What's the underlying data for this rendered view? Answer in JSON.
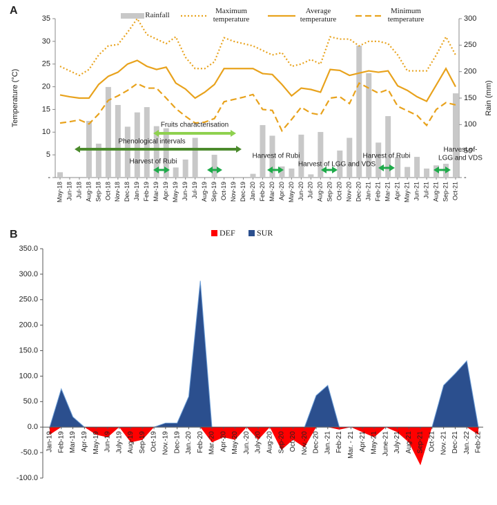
{
  "chart_data": [
    {
      "type": "bar",
      "panel_label": "A",
      "y_label": "Temperature (°C)",
      "y2_label": "Rain (mm)",
      "categories": [
        "May-18",
        "Jun-18",
        "Jul-18",
        "Aug-18",
        "Sep-18",
        "Oct-18",
        "Nov-18",
        "Dec-18",
        "Jan-19",
        "Feb-19",
        "Mar-19",
        "Apr-19",
        "May-19",
        "Jun-19",
        "Jul-19",
        "Aug-19",
        "Sep-19",
        "Oct-19",
        "Nov-19",
        "Dec-19",
        "Jan-20",
        "Feb-20",
        "Mar-20",
        "Apr-20",
        "May-20",
        "Jun-20",
        "Jul-20",
        "Aug-20",
        "Sep-20",
        "Oct-20",
        "Nov-20",
        "Dec-20",
        "Jan-21",
        "Feb-21",
        "Mar-21",
        "Apr-21",
        "May-21",
        "Jun-21",
        "Jul-21",
        "Aug-21",
        "Sep-21",
        "Oct-21"
      ],
      "series": [
        {
          "name": "Rainfall",
          "type": "bar",
          "axis": "y2",
          "color": "#c8c8c8",
          "values": [
            10,
            0,
            0,
            107,
            64,
            171,
            137,
            96,
            123,
            133,
            97,
            93,
            19,
            34,
            75,
            0,
            43,
            0,
            0,
            0,
            7,
            99,
            79,
            21,
            17,
            81,
            6,
            86,
            0,
            51,
            75,
            249,
            197,
            66,
            116,
            39,
            20,
            39,
            17,
            23,
            26,
            159
          ]
        },
        {
          "name": "Maximum temperature",
          "type": "line",
          "style": "dotted",
          "color": "#e8a21c",
          "values": [
            24.5,
            23.5,
            22.5,
            23.8,
            27,
            29,
            29.3,
            32,
            35,
            31.5,
            30.5,
            29.5,
            31,
            26.5,
            24,
            24,
            25.5,
            30.8,
            30,
            29.5,
            29,
            28,
            27,
            27.5,
            24.5,
            25,
            26,
            25,
            31,
            30.5,
            30.5,
            29,
            30,
            30,
            29.5,
            27,
            23.5,
            23.5,
            23.5,
            27,
            31,
            27
          ]
        },
        {
          "name": "Average temperature",
          "type": "line",
          "style": "solid",
          "color": "#e8a21c",
          "values": [
            18.2,
            17.8,
            17.5,
            17.5,
            20.5,
            22.3,
            23.2,
            25,
            25.8,
            24.5,
            23.8,
            24.3,
            20.8,
            19.5,
            17.5,
            18.8,
            20.5,
            24,
            24,
            24,
            24,
            22.9,
            22.7,
            20.5,
            18,
            19.7,
            19.4,
            18.8,
            23.8,
            23.6,
            22.5,
            23,
            23.5,
            23.2,
            23.5,
            20.2,
            19.2,
            17.8,
            16.8,
            20.4,
            24,
            20
          ]
        },
        {
          "name": "Minimum temperature",
          "type": "line",
          "style": "dashed",
          "color": "#e8a21c",
          "values": [
            12,
            12.3,
            12.7,
            11.8,
            14,
            17,
            18,
            19.2,
            20.7,
            19.7,
            19.7,
            17.5,
            15.2,
            13.5,
            12,
            12.2,
            13,
            16.7,
            17.2,
            17.7,
            18.3,
            15,
            14.8,
            10.3,
            12.8,
            15.5,
            14.2,
            13.8,
            17.5,
            17.8,
            16.3,
            20.8,
            19.7,
            18.6,
            19.4,
            15.7,
            14.7,
            13.7,
            11.5,
            15,
            16.5,
            16
          ]
        }
      ],
      "ylim": [
        0,
        35
      ],
      "yticks": [
        {
          "value": 0,
          "label": "-"
        },
        5,
        10,
        15,
        20,
        25,
        30,
        35
      ],
      "y2lim": [
        0,
        300
      ],
      "y2ticks": [
        {
          "value": 0,
          "label": "-"
        },
        50,
        100,
        150,
        200,
        250,
        300
      ],
      "annotations": [
        "Fruits characterisation",
        "Phenological intervals",
        "Harvest of Rubi",
        "Harvest of Rubi",
        "Harvest of Rubi",
        "Harvest of LGG  and VDS",
        "Harvest of-",
        "LGG and VDS"
      ]
    },
    {
      "type": "area",
      "panel_label": "B",
      "categories": [
        "Jan-19",
        "Feb-19",
        "Mar-19",
        "Apr-19",
        "May-19",
        "Jun-19",
        "July-19",
        "Aug-19",
        "Sep-19",
        "Oct-19",
        "Nov.-19",
        "Dec-19",
        "Jan.-20",
        "Feb-20",
        "Mar.-20",
        "Apr-20",
        "May-20",
        "Jun.-20",
        "July-20",
        "Aug-20",
        "Sep-20",
        "Oct-20",
        "Nov.-20",
        "Dec-20",
        "Jan.-21",
        "Feb-21",
        "Mar. - 21",
        "Apr-21",
        "May-21",
        "June-21",
        "July-21",
        "Aug-21",
        "Sep-21",
        "Oct-21",
        "Nov.-21",
        "Dec-21",
        "Jan.-22",
        "Feb-22"
      ],
      "series": [
        {
          "name": "DEF",
          "color": "#ff0000",
          "values": [
            -15,
            0,
            0,
            0,
            -15,
            -20,
            0,
            -30,
            -25,
            0,
            0,
            0,
            0,
            0,
            -30,
            -20,
            -25,
            0,
            -25,
            0,
            -45,
            -25,
            -40,
            0,
            0,
            -5,
            0,
            -10,
            -20,
            0,
            -10,
            -30,
            -75,
            0,
            0,
            0,
            0,
            -15
          ]
        },
        {
          "name": "SUR",
          "color": "#2b4f8e",
          "values": [
            0,
            75,
            20,
            0,
            0,
            0,
            0,
            0,
            0,
            0,
            8,
            8,
            60,
            287,
            0,
            0,
            0,
            0,
            0,
            0,
            0,
            0,
            0,
            62,
            82,
            0,
            0,
            0,
            0,
            0,
            0,
            0,
            0,
            0,
            82,
            105,
            130,
            0
          ]
        }
      ],
      "ylim": [
        -100,
        350
      ],
      "yticks": [
        {
          "value": -100,
          "label": "-100.0"
        },
        {
          "value": -50,
          "label": "-50.0"
        },
        {
          "value": 0,
          "label": "0.0"
        },
        {
          "value": 50,
          "label": "50.0"
        },
        {
          "value": 100,
          "label": "100.0"
        },
        {
          "value": 150,
          "label": "150.0"
        },
        {
          "value": 200,
          "label": "200.0"
        },
        {
          "value": 250,
          "label": "250.0"
        },
        {
          "value": 300,
          "label": "300.0"
        },
        {
          "value": 350,
          "label": "350.0"
        }
      ]
    }
  ]
}
